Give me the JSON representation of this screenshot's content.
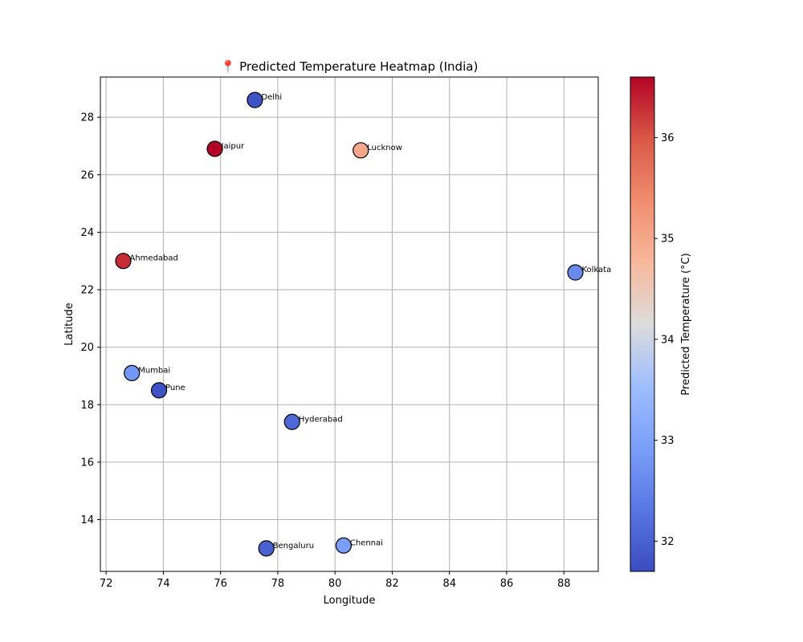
{
  "chart_data": {
    "type": "scatter",
    "title": "📍 Predicted Temperature Heatmap (India)",
    "xlabel": "Longitude",
    "ylabel": "Latitude",
    "xlim": [
      71.8,
      89.2
    ],
    "ylim": [
      12.2,
      29.4
    ],
    "xticks": [
      72,
      74,
      76,
      78,
      80,
      82,
      84,
      86,
      88
    ],
    "yticks": [
      14,
      16,
      18,
      20,
      22,
      24,
      26,
      28
    ],
    "grid": true,
    "colormap": "coolwarm",
    "colorbar": {
      "label": "Predicted Temperature (°C)",
      "min": 31.7,
      "max": 36.6,
      "ticks": [
        32,
        33,
        34,
        35,
        36
      ]
    },
    "points": [
      {
        "city": "Delhi",
        "lon": 77.2,
        "lat": 28.6,
        "temp": 31.8
      },
      {
        "city": "Jaipur",
        "lon": 75.8,
        "lat": 26.9,
        "temp": 36.6
      },
      {
        "city": "Lucknow",
        "lon": 80.9,
        "lat": 26.85,
        "temp": 35.0
      },
      {
        "city": "Ahmedabad",
        "lon": 72.6,
        "lat": 23.0,
        "temp": 36.3
      },
      {
        "city": "Kolkata",
        "lon": 88.4,
        "lat": 22.6,
        "temp": 32.6
      },
      {
        "city": "Mumbai",
        "lon": 72.9,
        "lat": 19.1,
        "temp": 32.8
      },
      {
        "city": "Pune",
        "lon": 73.85,
        "lat": 18.5,
        "temp": 31.8
      },
      {
        "city": "Hyderabad",
        "lon": 78.5,
        "lat": 17.4,
        "temp": 32.1
      },
      {
        "city": "Bengaluru",
        "lon": 77.6,
        "lat": 13.0,
        "temp": 32.0
      },
      {
        "city": "Chennai",
        "lon": 80.3,
        "lat": 13.1,
        "temp": 32.9
      }
    ]
  }
}
